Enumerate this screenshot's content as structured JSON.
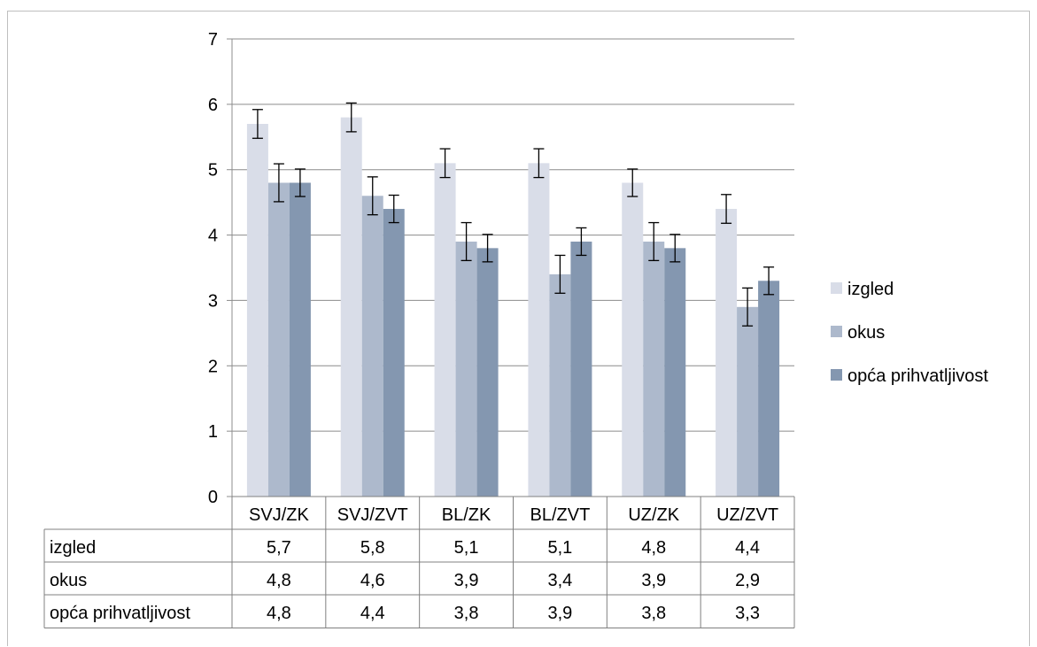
{
  "chart_data": {
    "type": "bar",
    "categories": [
      "SVJ/ZK",
      "SVJ/ZVT",
      "BL/ZK",
      "BL/ZVT",
      "UZ/ZK",
      "UZ/ZVT"
    ],
    "series": [
      {
        "name": "izgled",
        "color": "#d9dde8",
        "values": [
          5.7,
          5.8,
          5.1,
          5.1,
          4.8,
          4.4
        ],
        "labels": [
          "5,7",
          "5,8",
          "5,1",
          "5,1",
          "4,8",
          "4,4"
        ],
        "errors": [
          0.22,
          0.22,
          0.22,
          0.22,
          0.21,
          0.22
        ]
      },
      {
        "name": "okus",
        "color": "#adb9cc",
        "values": [
          4.8,
          4.6,
          3.9,
          3.4,
          3.9,
          2.9
        ],
        "labels": [
          "4,8",
          "4,6",
          "3,9",
          "3,4",
          "3,9",
          "2,9"
        ],
        "errors": [
          0.29,
          0.29,
          0.29,
          0.29,
          0.29,
          0.29
        ]
      },
      {
        "name": "opća prihvatljivost",
        "color": "#8497b0",
        "values": [
          4.8,
          4.4,
          3.8,
          3.9,
          3.8,
          3.3
        ],
        "labels": [
          "4,8",
          "4,4",
          "3,8",
          "3,9",
          "3,8",
          "3,3"
        ],
        "errors": [
          0.21,
          0.21,
          0.21,
          0.21,
          0.21,
          0.21
        ]
      }
    ],
    "ylim": [
      0,
      7
    ],
    "yticks": [
      0,
      1,
      2,
      3,
      4,
      5,
      6,
      7
    ],
    "grid": true,
    "legend": "right",
    "data_table": true
  }
}
